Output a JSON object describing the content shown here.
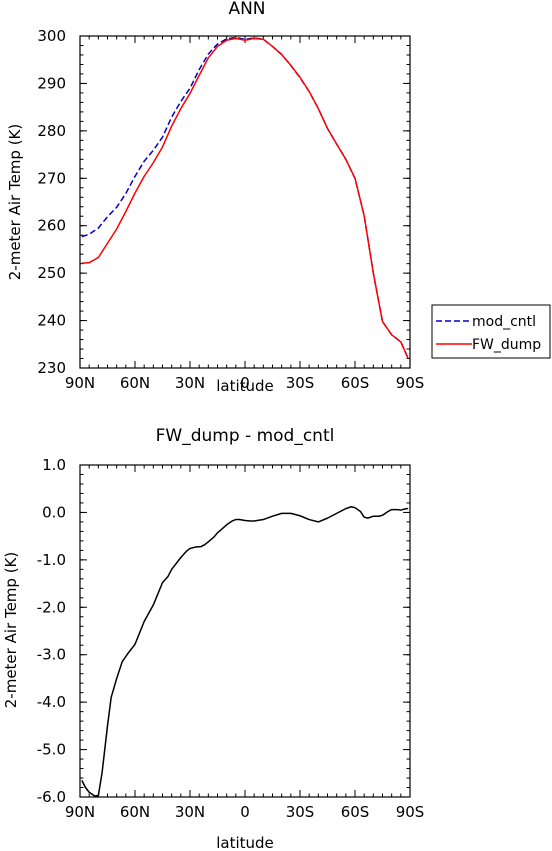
{
  "chart_data": [
    {
      "type": "line",
      "title": "ANN",
      "xlabel": "latitude",
      "ylabel": "2-meter Air Temp (K)",
      "xlim": [
        90,
        -90
      ],
      "ylim": [
        230,
        300
      ],
      "x_tick_values": [
        90,
        60,
        30,
        0,
        -30,
        -60,
        -90
      ],
      "x_tick_labels": [
        "90N",
        "60N",
        "30N",
        "0",
        "30S",
        "60S",
        "90S"
      ],
      "y_ticks": [
        "230",
        "240",
        "250",
        "260",
        "270",
        "280",
        "290",
        "300"
      ],
      "y_tick_values": [
        230,
        240,
        250,
        260,
        270,
        280,
        290,
        300
      ],
      "legend": {
        "placement": "outside-right"
      },
      "series": [
        {
          "name": "mod_cntl",
          "color": "#0000cc",
          "dash": "dashed",
          "x": [
            89,
            85,
            80,
            75,
            70,
            65,
            60,
            55,
            50,
            45,
            40,
            35,
            30,
            25,
            20,
            15,
            10,
            5,
            0,
            -5,
            -10,
            -15,
            -20,
            -25,
            -30,
            -35,
            -40,
            -45,
            -50,
            -55,
            -60,
            -65,
            -70,
            -75,
            -80,
            -85,
            -89
          ],
          "y": [
            257.7,
            258.2,
            259.5,
            261.9,
            263.9,
            266.8,
            270.4,
            273.6,
            275.9,
            278.7,
            282.9,
            286.2,
            289.0,
            292.9,
            296.2,
            298.3,
            299.4,
            299.7,
            299.3,
            299.6,
            299.3,
            297.8,
            296.1,
            293.8,
            291.2,
            288.3,
            284.7,
            280.5,
            277.2,
            274.0,
            270.0,
            262.1,
            250.0,
            239.8,
            237.0,
            235.5,
            232.0
          ]
        },
        {
          "name": "FW_dump",
          "color": "#ff0000",
          "dash": "solid",
          "x": [
            89,
            85,
            80,
            75,
            70,
            65,
            60,
            55,
            50,
            45,
            40,
            35,
            30,
            25,
            20,
            15,
            10,
            5,
            0,
            -5,
            -10,
            -15,
            -20,
            -25,
            -30,
            -35,
            -40,
            -45,
            -50,
            -55,
            -60,
            -65,
            -70,
            -75,
            -80,
            -85,
            -89
          ],
          "y": [
            252.1,
            252.2,
            253.3,
            256.3,
            259.3,
            263.0,
            266.9,
            270.4,
            273.3,
            276.6,
            281.0,
            284.7,
            287.9,
            291.7,
            295.4,
            297.8,
            299.1,
            299.5,
            299.1,
            299.5,
            299.3,
            297.8,
            296.1,
            293.8,
            291.3,
            288.3,
            284.7,
            280.5,
            277.2,
            274.0,
            270.0,
            262.1,
            250.0,
            239.8,
            237.0,
            235.5,
            232.0
          ]
        }
      ]
    },
    {
      "type": "line",
      "title": "FW_dump - mod_cntl",
      "xlabel": "latitude",
      "ylabel": "2-meter Air Temp (K)",
      "xlim": [
        90,
        -90
      ],
      "ylim": [
        -6.0,
        1.0
      ],
      "x_tick_values": [
        90,
        60,
        30,
        0,
        -30,
        -60,
        -90
      ],
      "x_tick_labels": [
        "90N",
        "60N",
        "30N",
        "0",
        "30S",
        "60S",
        "90S"
      ],
      "y_ticks": [
        "-6.0",
        "-5.0",
        "-4.0",
        "-3.0",
        "-2.0",
        "-1.0",
        "0.0",
        "1.0"
      ],
      "y_tick_values": [
        -6,
        -5,
        -4,
        -3,
        -2,
        -1,
        0,
        1
      ],
      "series": [
        {
          "color": "#000000",
          "dash": "solid",
          "x": [
            89,
            87,
            85,
            82,
            80,
            78,
            75,
            73,
            70,
            67,
            64,
            60,
            55,
            50,
            45,
            42,
            40,
            37,
            35,
            32,
            30,
            27,
            24,
            22,
            20,
            17,
            15,
            12,
            10,
            7,
            5,
            3,
            0,
            -3,
            -5,
            -10,
            -15,
            -20,
            -25,
            -30,
            -35,
            -40,
            -45,
            -50,
            -55,
            -58,
            -60,
            -63,
            -65,
            -67,
            -70,
            -73,
            -75,
            -78,
            -80,
            -83,
            -85,
            -88,
            -89
          ],
          "y": [
            -5.65,
            -5.8,
            -5.9,
            -5.98,
            -5.97,
            -5.5,
            -4.5,
            -3.9,
            -3.5,
            -3.15,
            -2.98,
            -2.78,
            -2.3,
            -1.95,
            -1.48,
            -1.35,
            -1.2,
            -1.05,
            -0.95,
            -0.82,
            -0.76,
            -0.73,
            -0.72,
            -0.68,
            -0.62,
            -0.52,
            -0.43,
            -0.33,
            -0.26,
            -0.18,
            -0.15,
            -0.15,
            -0.17,
            -0.18,
            -0.18,
            -0.15,
            -0.08,
            -0.02,
            -0.02,
            -0.07,
            -0.15,
            -0.2,
            -0.12,
            -0.02,
            0.08,
            0.12,
            0.1,
            0.02,
            -0.1,
            -0.12,
            -0.08,
            -0.08,
            -0.06,
            0.02,
            0.06,
            0.06,
            0.05,
            0.08,
            0.08
          ]
        }
      ]
    }
  ]
}
